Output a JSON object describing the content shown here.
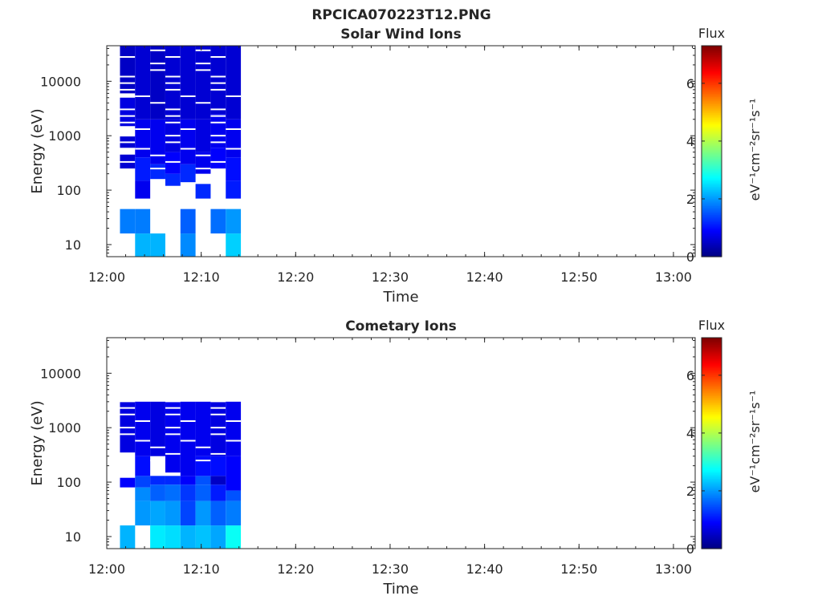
{
  "figure": {
    "title": "RPCICA070223T12.PNG"
  },
  "colorscale": [
    "#00007F",
    "#0000FF",
    "#007FFF",
    "#00FFFF",
    "#7FFF7F",
    "#FFFF00",
    "#FF7F00",
    "#FF0000",
    "#7F0000"
  ],
  "chart_data": [
    {
      "type": "heatmap",
      "title": "Solar Wind Ions",
      "xlabel": "Time",
      "ylabel": "Energy (eV)",
      "x_ticks": [
        "12:00",
        "12:10",
        "12:20",
        "12:30",
        "12:40",
        "12:50",
        "13:00"
      ],
      "xlim_minutes": [
        0,
        62.3
      ],
      "ylim": [
        6,
        45000
      ],
      "y_scale": "log",
      "y_ticks": [
        {
          "value": 10,
          "label": "10"
        },
        {
          "value": 100,
          "label": "100"
        },
        {
          "value": 1000,
          "label": "1000"
        },
        {
          "value": 10000,
          "label": "10000"
        }
      ],
      "colorbar": {
        "label": "Flux",
        "units": "eV⁻¹cm⁻²sr⁻¹s⁻¹",
        "range": [
          0,
          7.3
        ],
        "ticks": [
          {
            "value": 0,
            "label": "0"
          },
          {
            "value": 2,
            "label": "2"
          },
          {
            "value": 4,
            "label": "4"
          },
          {
            "value": 6,
            "label": "6"
          }
        ]
      },
      "columns": [
        {
          "t0": 1.4,
          "t1": 3.0,
          "cells": [
            [
              16,
              45,
              1.8
            ],
            [
              250,
              450,
              0.6
            ],
            [
              600,
              1000,
              0.6
            ],
            [
              1500,
              5000,
              0.7
            ],
            [
              6000,
              45000,
              0.5
            ]
          ]
        },
        {
          "t0": 3.0,
          "t1": 4.6,
          "cells": [
            [
              6,
              16,
              2.2
            ],
            [
              16,
              45,
              1.8
            ],
            [
              70,
              150,
              0.8
            ],
            [
              150,
              400,
              1.1
            ],
            [
              400,
              2000,
              0.8
            ],
            [
              2000,
              45000,
              0.6
            ]
          ]
        },
        {
          "t0": 4.6,
          "t1": 6.2,
          "cells": [
            [
              6,
              16,
              2.2
            ],
            [
              160,
              300,
              1.2
            ],
            [
              300,
              2000,
              0.8
            ],
            [
              2000,
              45000,
              0.5
            ]
          ]
        },
        {
          "t0": 6.2,
          "t1": 7.8,
          "cells": [
            [
              120,
              200,
              1.2
            ],
            [
              200,
              500,
              0.9
            ],
            [
              500,
              2000,
              0.7
            ],
            [
              2000,
              45000,
              0.6
            ]
          ]
        },
        {
          "t0": 7.8,
          "t1": 9.4,
          "cells": [
            [
              6,
              16,
              1.9
            ],
            [
              16,
              45,
              1.6
            ],
            [
              140,
              300,
              1.2
            ],
            [
              300,
              2000,
              0.8
            ],
            [
              2000,
              45000,
              0.6
            ]
          ]
        },
        {
          "t0": 9.4,
          "t1": 11.0,
          "cells": [
            [
              70,
              130,
              1.2
            ],
            [
              200,
              500,
              0.8
            ],
            [
              500,
              2000,
              0.7
            ],
            [
              2000,
              45000,
              0.6
            ]
          ]
        },
        {
          "t0": 11.0,
          "t1": 12.6,
          "cells": [
            [
              16,
              45,
              1.7
            ],
            [
              250,
              600,
              0.9
            ],
            [
              600,
              2500,
              0.8
            ],
            [
              2500,
              45000,
              0.6
            ]
          ]
        },
        {
          "t0": 12.6,
          "t1": 14.2,
          "cells": [
            [
              6,
              16,
              2.4
            ],
            [
              16,
              45,
              2.0
            ],
            [
              70,
              150,
              1.1
            ],
            [
              150,
              400,
              1.0
            ],
            [
              400,
              2000,
              0.8
            ],
            [
              2000,
              45000,
              0.6
            ]
          ]
        }
      ]
    },
    {
      "type": "heatmap",
      "title": "Cometary Ions",
      "xlabel": "Time",
      "ylabel": "Energy (eV)",
      "x_ticks": [
        "12:00",
        "12:10",
        "12:20",
        "12:30",
        "12:40",
        "12:50",
        "13:00"
      ],
      "xlim_minutes": [
        0,
        62.3
      ],
      "ylim": [
        6,
        45000
      ],
      "y_scale": "log",
      "y_ticks": [
        {
          "value": 10,
          "label": "10"
        },
        {
          "value": 100,
          "label": "100"
        },
        {
          "value": 1000,
          "label": "1000"
        },
        {
          "value": 10000,
          "label": "10000"
        }
      ],
      "colorbar": {
        "label": "Flux",
        "units": "eV⁻¹cm⁻²sr⁻¹s⁻¹",
        "range": [
          0,
          7.3
        ],
        "ticks": [
          {
            "value": 0,
            "label": "0"
          },
          {
            "value": 2,
            "label": "2"
          },
          {
            "value": 4,
            "label": "4"
          },
          {
            "value": 6,
            "label": "6"
          }
        ]
      },
      "columns": [
        {
          "t0": 1.4,
          "t1": 3.0,
          "cells": [
            [
              6,
              16,
              2.2
            ],
            [
              80,
              120,
              0.9
            ],
            [
              350,
              3000,
              0.7
            ]
          ]
        },
        {
          "t0": 3.0,
          "t1": 4.6,
          "cells": [
            [
              16,
              45,
              2.0
            ],
            [
              45,
              80,
              1.9
            ],
            [
              80,
              130,
              1.4
            ],
            [
              130,
              300,
              1.0
            ],
            [
              300,
              3000,
              0.8
            ]
          ]
        },
        {
          "t0": 4.6,
          "t1": 6.2,
          "cells": [
            [
              6,
              16,
              2.6
            ],
            [
              16,
              45,
              2.1
            ],
            [
              45,
              90,
              1.6
            ],
            [
              90,
              130,
              1.2
            ],
            [
              300,
              3000,
              0.7
            ]
          ]
        },
        {
          "t0": 6.2,
          "t1": 7.8,
          "cells": [
            [
              6,
              16,
              2.5
            ],
            [
              16,
              45,
              2.0
            ],
            [
              45,
              90,
              1.7
            ],
            [
              90,
              130,
              1.2
            ],
            [
              150,
              3000,
              0.8
            ]
          ]
        },
        {
          "t0": 7.8,
          "t1": 9.4,
          "cells": [
            [
              6,
              16,
              2.2
            ],
            [
              16,
              45,
              1.4
            ],
            [
              45,
              90,
              1.3
            ],
            [
              90,
              130,
              0.9
            ],
            [
              130,
              3000,
              0.8
            ]
          ]
        },
        {
          "t0": 9.4,
          "t1": 11.0,
          "cells": [
            [
              6,
              16,
              2.3
            ],
            [
              16,
              45,
              2.0
            ],
            [
              45,
              90,
              1.6
            ],
            [
              90,
              130,
              1.5
            ],
            [
              130,
              300,
              1.0
            ],
            [
              300,
              3000,
              0.8
            ]
          ]
        },
        {
          "t0": 11.0,
          "t1": 12.6,
          "cells": [
            [
              6,
              16,
              2.1
            ],
            [
              16,
              45,
              1.6
            ],
            [
              45,
              90,
              1.1
            ],
            [
              90,
              130,
              0.5
            ],
            [
              130,
              300,
              1.0
            ],
            [
              300,
              3000,
              0.7
            ]
          ]
        },
        {
          "t0": 12.6,
          "t1": 14.2,
          "cells": [
            [
              6,
              16,
              2.8
            ],
            [
              16,
              45,
              1.8
            ],
            [
              45,
              70,
              1.5
            ],
            [
              70,
              300,
              0.9
            ],
            [
              300,
              3000,
              0.8
            ]
          ]
        }
      ]
    }
  ]
}
